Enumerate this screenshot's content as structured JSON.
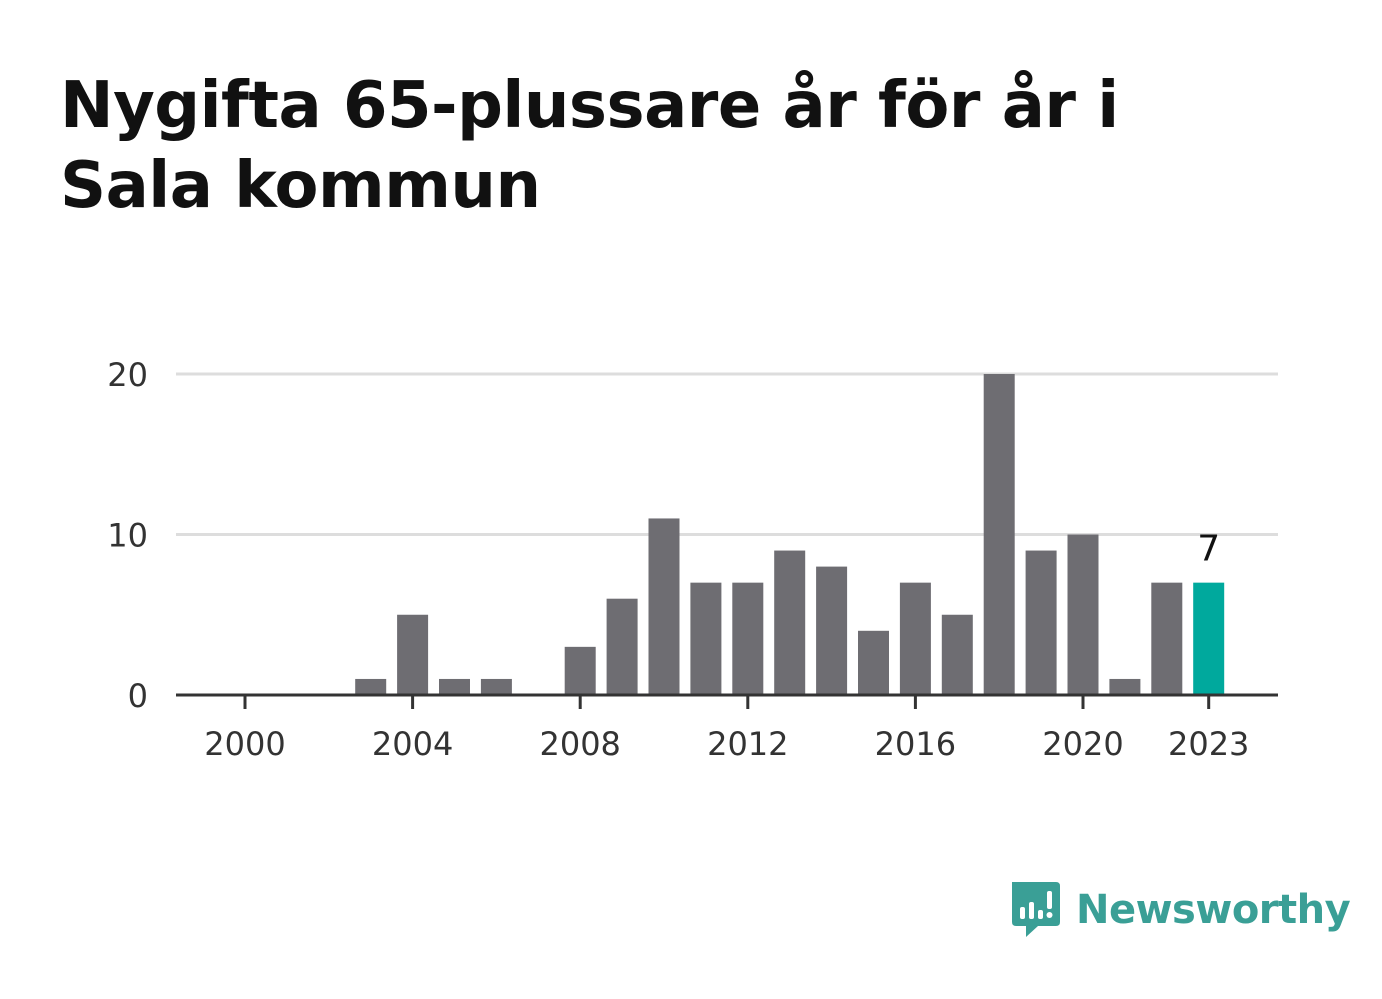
{
  "title": "Nygifta 65-plussare år för år i Sala kommun",
  "brand": {
    "name": "Newsworthy",
    "logo_icon": "newsworthy-bar-chart-bubble-icon",
    "color": "#3a9f96"
  },
  "colors": {
    "bar": "#6e6d72",
    "highlight": "#00a99d",
    "grid": "#dddddd",
    "axis": "#333333",
    "tick_text": "#333333"
  },
  "chart_data": {
    "type": "bar",
    "title": "Nygifta 65-plussare år för år i Sala kommun",
    "xlabel": "",
    "ylabel": "",
    "x": [
      2000,
      2001,
      2002,
      2003,
      2004,
      2005,
      2006,
      2007,
      2008,
      2009,
      2010,
      2011,
      2012,
      2013,
      2014,
      2015,
      2016,
      2017,
      2018,
      2019,
      2020,
      2021,
      2022,
      2023
    ],
    "values": [
      0,
      0,
      0,
      1,
      5,
      1,
      1,
      0,
      3,
      6,
      11,
      7,
      7,
      9,
      8,
      4,
      7,
      5,
      20,
      9,
      10,
      1,
      7,
      7
    ],
    "highlight": {
      "x": 2023,
      "value": 7,
      "label": "7"
    },
    "ylim": [
      0,
      20
    ],
    "yticks": [
      0,
      10,
      20
    ],
    "ytick_labels": [
      "0",
      "10",
      "20"
    ],
    "xticks": [
      2000,
      2004,
      2008,
      2012,
      2016,
      2020,
      2023
    ],
    "xtick_labels": [
      "2000",
      "2004",
      "2008",
      "2012",
      "2016",
      "2020",
      "2023"
    ],
    "grid": true,
    "legend": "none"
  }
}
